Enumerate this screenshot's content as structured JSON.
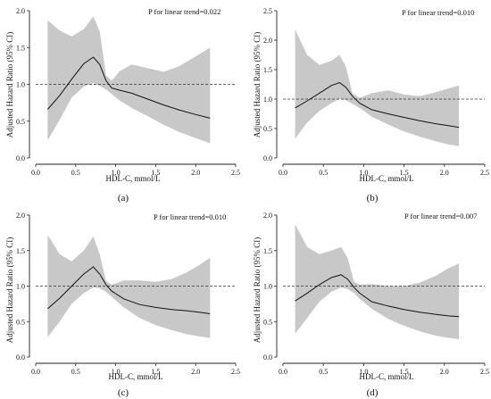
{
  "chart_data": [
    {
      "type": "line",
      "panel_label": "(a)",
      "annotation": "P for linear trend=0.022",
      "xlabel": "HDL-C, mmol/L",
      "ylabel": "Adjusted Hazard Ratio (95% CI)",
      "xlim": [
        0.0,
        2.5
      ],
      "ylim": [
        0.0,
        2.0
      ],
      "xticks": [
        "0.0",
        "0.5",
        "1.0",
        "1.5",
        "2.0",
        "2.5"
      ],
      "yticks": [
        "0.0",
        "0.5",
        "1.0",
        "1.5",
        "2.0"
      ],
      "reference_line": 1.0,
      "x": [
        0.15,
        0.3,
        0.45,
        0.6,
        0.72,
        0.8,
        0.88,
        0.95,
        1.05,
        1.2,
        1.4,
        1.6,
        1.8,
        2.0,
        2.18
      ],
      "hr": [
        0.66,
        0.85,
        1.07,
        1.28,
        1.37,
        1.27,
        1.05,
        0.95,
        0.92,
        0.88,
        0.8,
        0.72,
        0.65,
        0.59,
        0.54
      ],
      "lower": [
        0.24,
        0.52,
        0.82,
        0.97,
        1.02,
        0.98,
        0.93,
        0.87,
        0.78,
        0.68,
        0.57,
        0.45,
        0.35,
        0.27,
        0.2
      ],
      "upper": [
        1.87,
        1.73,
        1.65,
        1.75,
        1.92,
        1.72,
        1.12,
        1.05,
        1.18,
        1.27,
        1.22,
        1.17,
        1.25,
        1.38,
        1.5
      ]
    },
    {
      "type": "line",
      "panel_label": "(b)",
      "annotation": "P for linear trend=0.010",
      "xlabel": "HDL-C, mmol/L",
      "ylabel": "Adjusted Hazard Ratio (95% CI)",
      "xlim": [
        0.0,
        2.5
      ],
      "ylim": [
        0.0,
        2.5
      ],
      "xticks": [
        "0.0",
        "0.5",
        "1.0",
        "1.5",
        "2.0",
        "2.5"
      ],
      "yticks": [
        "0.0",
        "0.5",
        "1.0",
        "1.5",
        "2.0",
        "2.5"
      ],
      "reference_line": 1.0,
      "x": [
        0.15,
        0.3,
        0.45,
        0.6,
        0.7,
        0.78,
        0.86,
        0.95,
        1.1,
        1.3,
        1.5,
        1.7,
        1.9,
        2.05,
        2.18
      ],
      "hr": [
        0.85,
        0.97,
        1.1,
        1.23,
        1.28,
        1.2,
        1.05,
        0.93,
        0.82,
        0.75,
        0.69,
        0.63,
        0.58,
        0.55,
        0.52
      ],
      "lower": [
        0.33,
        0.6,
        0.8,
        0.93,
        1.0,
        0.98,
        0.92,
        0.85,
        0.7,
        0.57,
        0.45,
        0.36,
        0.28,
        0.23,
        0.2
      ],
      "upper": [
        2.18,
        1.75,
        1.58,
        1.65,
        1.75,
        1.55,
        1.1,
        1.02,
        1.1,
        1.15,
        1.08,
        1.05,
        1.12,
        1.18,
        1.23
      ]
    },
    {
      "type": "line",
      "panel_label": "(c)",
      "annotation": "P for linear trend=0.010",
      "xlabel": "HDL-C, mmol/L",
      "ylabel": "Adjusted Hazard Ratio (95% CI)",
      "xlim": [
        0.0,
        2.5
      ],
      "ylim": [
        0.0,
        2.0
      ],
      "xticks": [
        "0.0",
        "0.5",
        "1.0",
        "1.5",
        "2.0",
        "2.5"
      ],
      "yticks": [
        "0.0",
        "0.5",
        "1.0",
        "1.5",
        "2.0"
      ],
      "reference_line": 1.0,
      "x": [
        0.15,
        0.3,
        0.45,
        0.6,
        0.72,
        0.8,
        0.88,
        0.95,
        1.1,
        1.3,
        1.5,
        1.7,
        1.9,
        2.05,
        2.18
      ],
      "hr": [
        0.68,
        0.83,
        1.0,
        1.17,
        1.27,
        1.17,
        1.02,
        0.93,
        0.82,
        0.74,
        0.7,
        0.67,
        0.65,
        0.63,
        0.61
      ],
      "lower": [
        0.28,
        0.5,
        0.75,
        0.9,
        0.98,
        0.97,
        0.92,
        0.85,
        0.7,
        0.55,
        0.45,
        0.38,
        0.32,
        0.29,
        0.27
      ],
      "upper": [
        1.72,
        1.45,
        1.35,
        1.5,
        1.7,
        1.45,
        1.07,
        1.02,
        1.08,
        1.08,
        1.06,
        1.1,
        1.2,
        1.3,
        1.4
      ]
    },
    {
      "type": "line",
      "panel_label": "(d)",
      "annotation": "P for linear trend=0.007",
      "xlabel": "HDL-C, mmol/L",
      "ylabel": "Adjusted Hazard Ratio (95% CI)",
      "xlim": [
        0.0,
        2.5
      ],
      "ylim": [
        0.0,
        2.0
      ],
      "xticks": [
        "0.0",
        "0.5",
        "1.0",
        "1.5",
        "2.0",
        "2.5"
      ],
      "yticks": [
        "0.0",
        "0.5",
        "1.0",
        "1.5",
        "2.0"
      ],
      "reference_line": 1.0,
      "x": [
        0.15,
        0.3,
        0.45,
        0.6,
        0.72,
        0.8,
        0.88,
        0.95,
        1.1,
        1.3,
        1.5,
        1.7,
        1.9,
        2.05,
        2.18
      ],
      "hr": [
        0.79,
        0.9,
        1.02,
        1.12,
        1.16,
        1.1,
        0.98,
        0.9,
        0.78,
        0.72,
        0.67,
        0.63,
        0.6,
        0.58,
        0.57
      ],
      "lower": [
        0.33,
        0.55,
        0.78,
        0.92,
        0.98,
        0.96,
        0.9,
        0.82,
        0.68,
        0.54,
        0.44,
        0.36,
        0.3,
        0.27,
        0.25
      ],
      "upper": [
        1.87,
        1.55,
        1.45,
        1.5,
        1.55,
        1.4,
        1.06,
        1.02,
        1.03,
        1.0,
        1.0,
        1.05,
        1.15,
        1.25,
        1.32
      ]
    }
  ]
}
